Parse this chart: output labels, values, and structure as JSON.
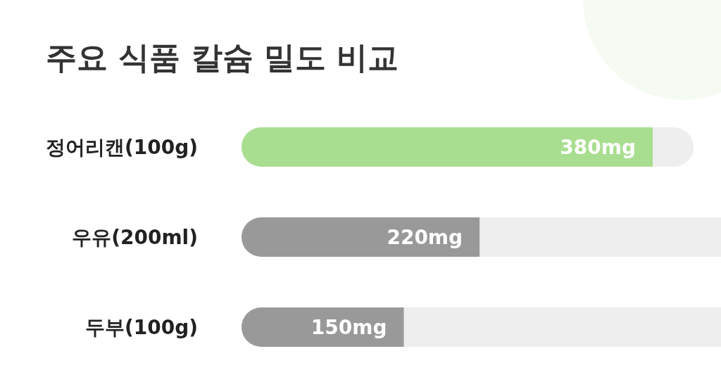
{
  "chart_data": {
    "type": "bar",
    "orientation": "horizontal",
    "title": "주요 식품 칼슘 밀도 비교",
    "categories": [
      "정어리캔(100g)",
      "우유(200ml)",
      "두부(100g)"
    ],
    "values": [
      380,
      220,
      150
    ],
    "value_labels": [
      "380mg",
      "220mg",
      "150mg"
    ],
    "colors": [
      "#a9de91",
      "#999999",
      "#999999"
    ]
  }
}
